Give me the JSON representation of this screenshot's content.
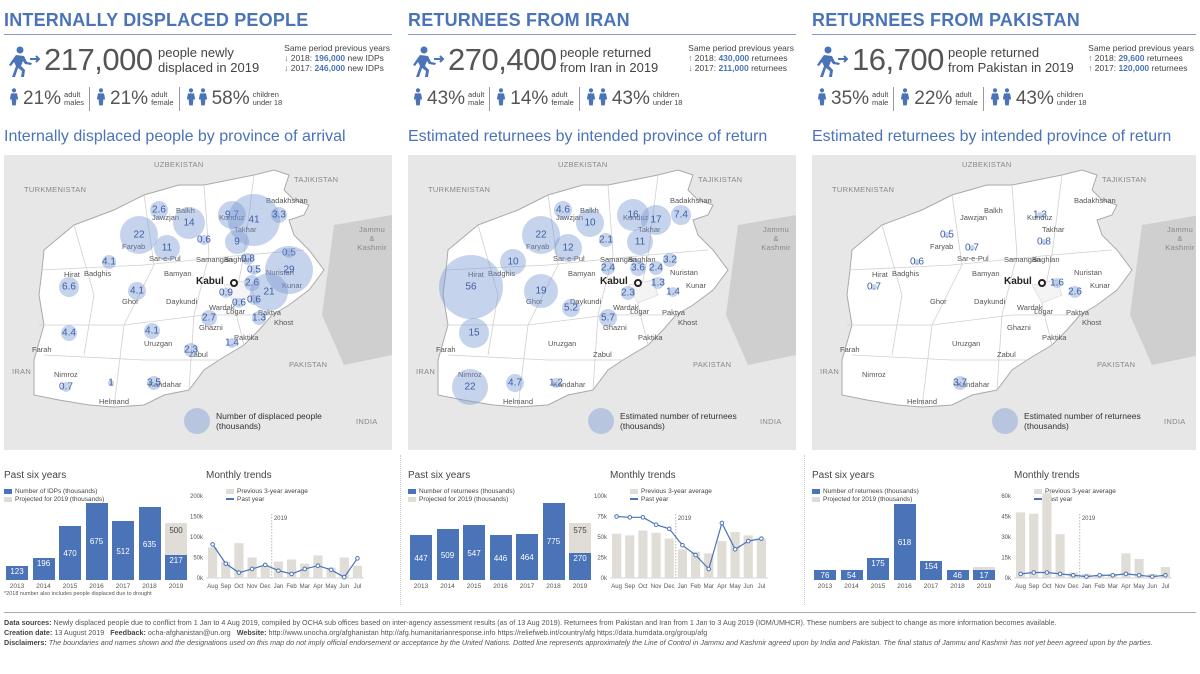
{
  "panels": [
    {
      "title": "INTERNALLY DISPLACED PEOPLE",
      "big_number": "217,000",
      "big_text": [
        "people newly",
        "displaced in 2019"
      ],
      "prev_title": "Same period previous years",
      "prev_lines": [
        {
          "dir": "down",
          "year": "2018:",
          "value": "196,000",
          "unit": "new IDPs"
        },
        {
          "dir": "down",
          "year": "2017:",
          "value": "246,000",
          "unit": "new IDPs"
        }
      ],
      "demo": [
        {
          "pct": "21%",
          "label": [
            "adult",
            "males"
          ]
        },
        {
          "pct": "21%",
          "label": [
            "adult",
            "female"
          ]
        },
        {
          "pct": "58%",
          "label": [
            "children",
            "under 18"
          ]
        }
      ],
      "map_title": "Internally displaced people by province of arrival",
      "legend": [
        "Number of displaced people",
        "(thousands)"
      ],
      "bubbles": [
        {
          "v": "2.6",
          "x": 155,
          "y": 55,
          "r": 9
        },
        {
          "v": "14",
          "x": 185,
          "y": 68,
          "r": 16
        },
        {
          "v": "9.7",
          "x": 228,
          "y": 60,
          "r": 14
        },
        {
          "v": "41",
          "x": 250,
          "y": 65,
          "r": 26
        },
        {
          "v": "3.3",
          "x": 275,
          "y": 60,
          "r": 8
        },
        {
          "v": "22",
          "x": 135,
          "y": 80,
          "r": 19
        },
        {
          "v": "11",
          "x": 163,
          "y": 93,
          "r": 13
        },
        {
          "v": "0.6",
          "x": 200,
          "y": 85,
          "r": 5
        },
        {
          "v": "9",
          "x": 233,
          "y": 87,
          "r": 12
        },
        {
          "v": "4.1",
          "x": 105,
          "y": 107,
          "r": 7
        },
        {
          "v": "0.8",
          "x": 244,
          "y": 104,
          "r": 6
        },
        {
          "v": "0.5",
          "x": 285,
          "y": 98,
          "r": 5
        },
        {
          "v": "29",
          "x": 285,
          "y": 115,
          "r": 24
        },
        {
          "v": "0.5",
          "x": 250,
          "y": 115,
          "r": 5
        },
        {
          "v": "6.6",
          "x": 65,
          "y": 132,
          "r": 10
        },
        {
          "v": "4.1",
          "x": 133,
          "y": 136,
          "r": 9
        },
        {
          "v": "2.6",
          "x": 248,
          "y": 128,
          "r": 8
        },
        {
          "v": "21",
          "x": 265,
          "y": 137,
          "r": 19
        },
        {
          "v": "0.6",
          "x": 250,
          "y": 145,
          "r": 5
        },
        {
          "v": "0.9",
          "x": 222,
          "y": 138,
          "r": 5
        },
        {
          "v": "0.6",
          "x": 235,
          "y": 148,
          "r": 5
        },
        {
          "v": "2.7",
          "x": 205,
          "y": 163,
          "r": 8
        },
        {
          "v": "1.3",
          "x": 255,
          "y": 163,
          "r": 7
        },
        {
          "v": "4.1",
          "x": 148,
          "y": 176,
          "r": 8
        },
        {
          "v": "4.4",
          "x": 65,
          "y": 178,
          "r": 8
        },
        {
          "v": "1.4",
          "x": 228,
          "y": 188,
          "r": 5
        },
        {
          "v": "2.3",
          "x": 187,
          "y": 195,
          "r": 7
        },
        {
          "v": "0.7",
          "x": 62,
          "y": 232,
          "r": 5
        },
        {
          "v": "1",
          "x": 107,
          "y": 228,
          "r": 3
        },
        {
          "v": "3.5",
          "x": 150,
          "y": 228,
          "r": 7
        }
      ],
      "bar_title": "Past six years",
      "bar_legend": [
        "Number of IDPs (thousands)",
        "Projected for 2019 (thousands)"
      ],
      "years": [
        "2013",
        "2014",
        "2015",
        "2016",
        "2017",
        "2018",
        "2019"
      ],
      "actual": [
        123,
        196,
        470,
        675,
        512,
        635,
        217
      ],
      "projected": [
        null,
        null,
        null,
        null,
        null,
        null,
        500
      ],
      "bar_max": 700,
      "note": "*2018 number also includes people displaced due to drought",
      "monthly_title": "Monthly trends",
      "monthly_legend": [
        "Previous 3-year average",
        "Past year"
      ],
      "y_ticks": [
        "200k",
        "150k",
        "100k",
        "50k",
        "0k"
      ],
      "y_max": 200,
      "months": [
        "Aug",
        "Sep",
        "Oct",
        "Nov",
        "Dec",
        "Jan",
        "Feb",
        "Mar",
        "Apr",
        "May",
        "Jun",
        "Jul"
      ],
      "avg": [
        75,
        40,
        85,
        50,
        30,
        40,
        45,
        35,
        55,
        25,
        50,
        30
      ],
      "past": [
        82,
        35,
        13,
        22,
        32,
        18,
        10,
        22,
        30,
        20,
        2,
        48
      ],
      "marker_label": "2019"
    },
    {
      "title": "RETURNEES FROM IRAN",
      "big_number": "270,400",
      "big_text": [
        "people returned",
        "from Iran in 2019"
      ],
      "prev_title": "Same period previous years",
      "prev_lines": [
        {
          "dir": "up",
          "year": "2018:",
          "value": "430,000",
          "unit": "returnees"
        },
        {
          "dir": "down",
          "year": "2017:",
          "value": "211,000",
          "unit": "returnees"
        }
      ],
      "demo": [
        {
          "pct": "43%",
          "label": [
            "adult",
            "male"
          ]
        },
        {
          "pct": "14%",
          "label": [
            "adult",
            "female"
          ]
        },
        {
          "pct": "43%",
          "label": [
            "children",
            "under 18"
          ]
        }
      ],
      "map_title": "Estimated returnees by intended province of return",
      "legend": [
        "Estimated number of returnees",
        "(thousands)"
      ],
      "bubbles": [
        {
          "v": "4.6",
          "x": 155,
          "y": 55,
          "r": 9
        },
        {
          "v": "10",
          "x": 182,
          "y": 68,
          "r": 14
        },
        {
          "v": "16",
          "x": 225,
          "y": 60,
          "r": 16
        },
        {
          "v": "17",
          "x": 248,
          "y": 65,
          "r": 15
        },
        {
          "v": "7.4",
          "x": 273,
          "y": 60,
          "r": 10
        },
        {
          "v": "22",
          "x": 133,
          "y": 80,
          "r": 19
        },
        {
          "v": "12",
          "x": 160,
          "y": 93,
          "r": 14
        },
        {
          "v": "2.1",
          "x": 198,
          "y": 85,
          "r": 7
        },
        {
          "v": "11",
          "x": 232,
          "y": 87,
          "r": 13
        },
        {
          "v": "10",
          "x": 105,
          "y": 107,
          "r": 13
        },
        {
          "v": "2.4",
          "x": 200,
          "y": 113,
          "r": 7
        },
        {
          "v": "3.6",
          "x": 230,
          "y": 113,
          "r": 8
        },
        {
          "v": "2.4",
          "x": 248,
          "y": 113,
          "r": 7
        },
        {
          "v": "3.2",
          "x": 262,
          "y": 105,
          "r": 7
        },
        {
          "v": "56",
          "x": 63,
          "y": 132,
          "r": 32
        },
        {
          "v": "19",
          "x": 133,
          "y": 136,
          "r": 17
        },
        {
          "v": "2.3",
          "x": 220,
          "y": 138,
          "r": 7
        },
        {
          "v": "1.3",
          "x": 250,
          "y": 128,
          "r": 6
        },
        {
          "v": "1.4",
          "x": 265,
          "y": 137,
          "r": 5
        },
        {
          "v": "5.2",
          "x": 163,
          "y": 153,
          "r": 9
        },
        {
          "v": "5.7",
          "x": 200,
          "y": 163,
          "r": 9
        },
        {
          "v": "15",
          "x": 66,
          "y": 178,
          "r": 15
        },
        {
          "v": "22",
          "x": 62,
          "y": 232,
          "r": 18
        },
        {
          "v": "4.7",
          "x": 107,
          "y": 228,
          "r": 9
        },
        {
          "v": "1.2",
          "x": 148,
          "y": 228,
          "r": 5
        }
      ],
      "bar_title": "Past six years",
      "bar_legend": [
        "Number of returnees (thousands)",
        "Projected for 2019 (thousands)"
      ],
      "years": [
        "2013",
        "2014",
        "2015",
        "2016",
        "2017",
        "2018",
        "2019"
      ],
      "actual": [
        447,
        509,
        547,
        446,
        464,
        775,
        270
      ],
      "projected": [
        null,
        null,
        null,
        null,
        null,
        null,
        575
      ],
      "bar_max": 800,
      "note": "",
      "monthly_title": "Monthly trends",
      "monthly_legend": [
        "Previous 3-year average",
        "Past year"
      ],
      "y_ticks": [
        "100k",
        "75k",
        "50k",
        "25k",
        "0k"
      ],
      "y_max": 100,
      "months": [
        "Aug",
        "Sep",
        "Oct",
        "Nov",
        "Dec",
        "Jan",
        "Feb",
        "Mar",
        "Apr",
        "May",
        "Jun",
        "Jul"
      ],
      "avg": [
        54,
        52,
        58,
        55,
        48,
        35,
        32,
        30,
        45,
        56,
        52,
        48
      ],
      "past": [
        75,
        74,
        74,
        65,
        60,
        40,
        28,
        11,
        67,
        35,
        45,
        48
      ],
      "marker_label": "2019"
    },
    {
      "title": "RETURNEES FROM PAKISTAN",
      "big_number": "16,700",
      "big_text": [
        "people returned",
        "from Pakistan in 2019"
      ],
      "prev_title": "Same period previous years",
      "prev_lines": [
        {
          "dir": "up",
          "year": "2018:",
          "value": "29,600",
          "unit": "returnees"
        },
        {
          "dir": "up",
          "year": "2017:",
          "value": "120,000",
          "unit": "returnees"
        }
      ],
      "demo": [
        {
          "pct": "35%",
          "label": [
            "adult",
            "male"
          ]
        },
        {
          "pct": "22%",
          "label": [
            "adult",
            "female"
          ]
        },
        {
          "pct": "43%",
          "label": [
            "children",
            "under 18"
          ]
        }
      ],
      "map_title": "Estimated returnees by intended province of return",
      "legend": [
        "Estimated number of returnees",
        "(thousands)"
      ],
      "bubbles": [
        {
          "v": "1.3",
          "x": 228,
          "y": 60,
          "r": 3
        },
        {
          "v": "0.5",
          "x": 135,
          "y": 80,
          "r": 3
        },
        {
          "v": "0.7",
          "x": 160,
          "y": 93,
          "r": 3
        },
        {
          "v": "0.8",
          "x": 232,
          "y": 87,
          "r": 3
        },
        {
          "v": "0.6",
          "x": 105,
          "y": 107,
          "r": 3
        },
        {
          "v": "0.7",
          "x": 62,
          "y": 132,
          "r": 3
        },
        {
          "v": "1.6",
          "x": 245,
          "y": 128,
          "r": 5
        },
        {
          "v": "2.6",
          "x": 263,
          "y": 137,
          "r": 6
        },
        {
          "v": "3.7",
          "x": 148,
          "y": 228,
          "r": 7
        }
      ],
      "bar_title": "Past six years",
      "bar_legend": [
        "Number of returnees (thousands)",
        "Projected for 2019 (thousands)"
      ],
      "years": [
        "2013",
        "2014",
        "2015",
        "2016",
        "2017",
        "2018",
        "2019"
      ],
      "actual": [
        76,
        54,
        175,
        618,
        154,
        46,
        17
      ],
      "projected": [
        null,
        null,
        null,
        null,
        null,
        null,
        105
      ],
      "bar_max": 650,
      "note": "",
      "monthly_title": "Monthly trends",
      "monthly_legend": [
        "Previous 3-year average",
        "Past year"
      ],
      "y_ticks": [
        "60k",
        "45k",
        "30k",
        "15k",
        "0k"
      ],
      "y_max": 60,
      "months": [
        "Aug",
        "Sep",
        "Oct",
        "Nov",
        "Dec",
        "Jan",
        "Feb",
        "Mar",
        "Apr",
        "May",
        "Jun",
        "Jul"
      ],
      "avg": [
        48,
        47,
        62,
        32,
        4,
        3,
        2,
        3,
        18,
        14,
        3,
        8
      ],
      "past": [
        3,
        4,
        4,
        3,
        2,
        1,
        2,
        2,
        3,
        2,
        1,
        2
      ],
      "marker_label": "2019"
    }
  ],
  "map_labels": {
    "countries": [
      "UZBEKISTAN",
      "TAJIKISTAN",
      "TURKMENISTAN",
      "Jammu & Kashmir",
      "IRAN",
      "PAKISTAN",
      "INDIA"
    ],
    "provinces": [
      "Balkh",
      "Jawzjan",
      "Faryab",
      "Sar-e-Pul",
      "Samangan",
      "Takhar",
      "Kunduz",
      "Badakhshan",
      "Baghlan",
      "Badghis",
      "Bamyan",
      "Nuristan",
      "Kunar",
      "Hirat",
      "Ghor",
      "Daykundi",
      "Wardak",
      "Logar",
      "Paktya",
      "Khost",
      "Ghazni",
      "Uruzgan",
      "Paktika",
      "Zabul",
      "Farah",
      "Nimroz",
      "Helmand",
      "Kandahar"
    ],
    "capital": "Kabul"
  },
  "footer": {
    "sources_label": "Data sources:",
    "sources": "Newly displaced people due to conflict from 1 Jan to 4 Aug 2019, compiled by OCHA sub offices based on inter-agency assessment results (as of 13 Aug 2019). Returnees from Pakistan and Iran from 1 Jan to 3 Aug 2019 (IOM/UMHCR). These numbers are subject to change as more information becomes available.",
    "creation_label": "Creation date:",
    "creation": "13 August 2019",
    "feedback_label": "Feedback:",
    "feedback": "ocha-afghanistan@un.org",
    "website_label": "Website:",
    "website": "http://www.unocha.org/afghanistan   http://afg.humanitarianresponse.info   https://reliefweb.int/country/afg   https://data.humdata.org/group/afg",
    "disclaimers_label": "Disclaimers:",
    "disclaimers": "The boundaries and names shown and the designations used on this map do not imply official endorsement or acceptance by the United Nations. Dotted line represents approximately the Line of Control in Jammu and Kashmir agreed upon by India and Pakistan. The final status of Jammu and Kashmir has not yet been agreed upon by the parties."
  },
  "colors": {
    "accent": "#4a73b8",
    "projected": "#e0dcd6",
    "bubble": "#7896d2"
  }
}
